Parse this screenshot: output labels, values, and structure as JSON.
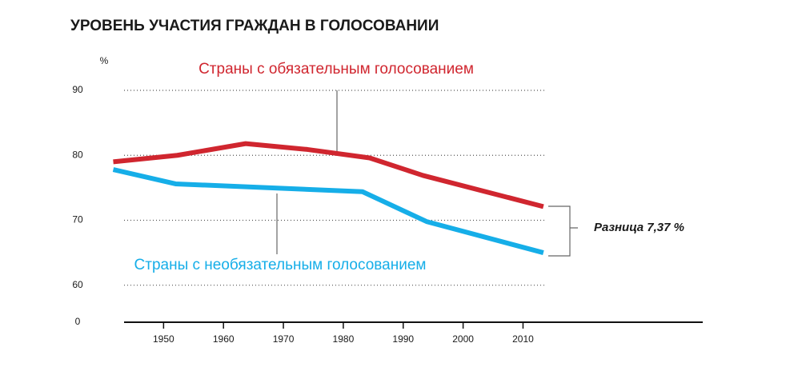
{
  "chart_data": {
    "type": "line",
    "title": "УРОВЕНЬ УЧАСТИЯ ГРАЖДАН В ГОЛОСОВАНИИ",
    "y_unit": "%",
    "xlim": [
      1941,
      2040
    ],
    "xticks": [
      1950,
      1960,
      1970,
      1980,
      1990,
      2000,
      2010
    ],
    "ylim": [
      0,
      90
    ],
    "y_break": [
      0,
      54.3
    ],
    "yticks": [
      0,
      60,
      70,
      80,
      90
    ],
    "grid": true,
    "series": [
      {
        "name": "Страны с обязательным голосованием",
        "color": "#d0262f",
        "x": [
          1941.6,
          1952.3,
          1963.7,
          1974,
          1984.4,
          1993.3,
          2013.4
        ],
        "values": [
          79,
          80,
          81.8,
          80.9,
          79.6,
          76.9,
          72.1
        ]
      },
      {
        "name": "Страны с необязательным голосованием",
        "color": "#16aee8",
        "x": [
          1941.6,
          1952,
          1983.2,
          1993.9,
          2013.4
        ],
        "values": [
          77.8,
          75.6,
          74.4,
          69.8,
          65
        ]
      }
    ],
    "annotation": "Разница 7,37 %"
  }
}
